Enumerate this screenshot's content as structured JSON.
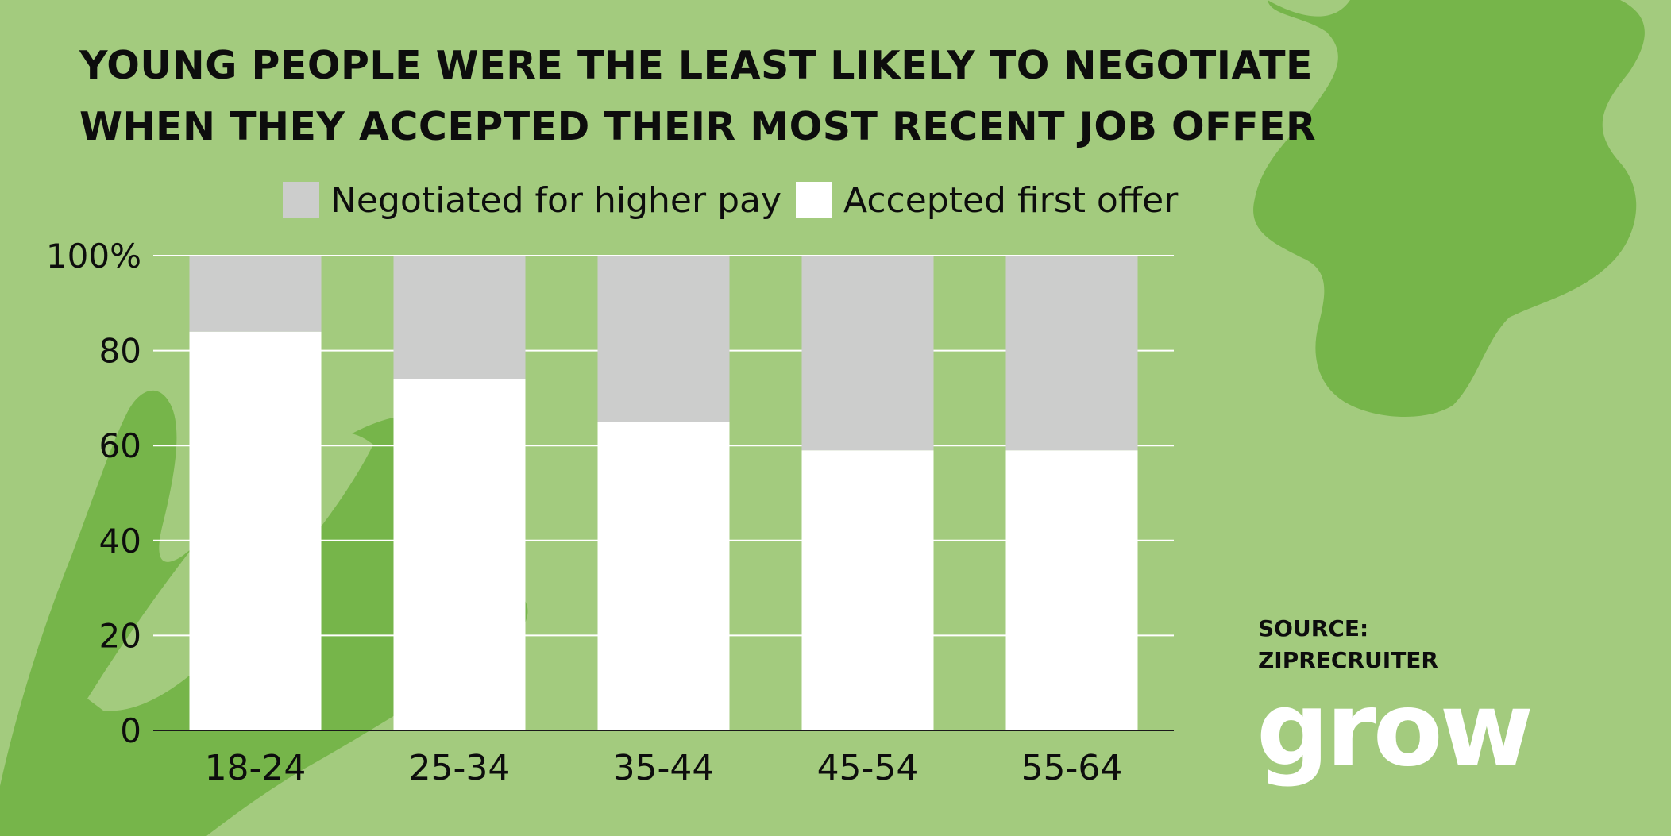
{
  "title": {
    "line1": "YOUNG PEOPLE WERE THE LEAST LIKELY TO NEGOTIATE",
    "line2": "WHEN THEY ACCEPTED THEIR MOST RECENT JOB OFFER"
  },
  "source": {
    "line1": "SOURCE:",
    "line2": "ZIPRECRUITER"
  },
  "logo": {
    "text": "grow"
  },
  "colors": {
    "background": "#a3cb7e",
    "accent_shape": "#76b54a",
    "negotiated": "#cccdcc",
    "accepted": "#ffffff"
  },
  "chart_data": {
    "type": "bar",
    "stacked": true,
    "categories": [
      "18-24",
      "25-34",
      "35-44",
      "45-54",
      "55-64"
    ],
    "series": [
      {
        "name": "Accepted first offer",
        "values": [
          84,
          74,
          65,
          59,
          59
        ],
        "color": "#ffffff"
      },
      {
        "name": "Negotiated for higher pay",
        "values": [
          16,
          26,
          35,
          41,
          41
        ],
        "color": "#cccdcc"
      }
    ],
    "legend": [
      "Negotiated for higher pay",
      "Accepted first offer"
    ],
    "legend_position": "top",
    "ylim": [
      0,
      100
    ],
    "yticks": [
      0,
      20,
      40,
      60,
      80,
      100
    ],
    "ytick_labels": [
      "0",
      "20",
      "40",
      "60",
      "80",
      "100%"
    ],
    "grid": true,
    "xlabel": "",
    "ylabel": ""
  }
}
